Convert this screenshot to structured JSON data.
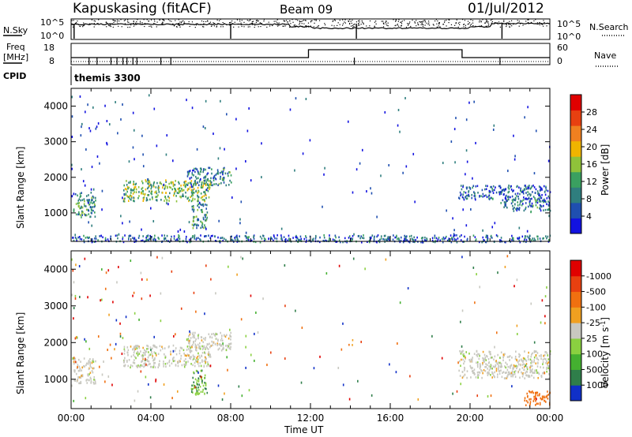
{
  "header": {
    "station": "Kapuskasing (fitACF)",
    "beam": "Beam 09",
    "date": "01/Jul/2012"
  },
  "panels": {
    "nsky": {
      "left_label": "N.Sky",
      "right_label": "N.Search",
      "left_ticks": [
        "10^5",
        "10^0"
      ],
      "right_ticks": [
        "10^5",
        "10^0"
      ]
    },
    "freq": {
      "left_label_line1": "Freq",
      "left_label_line2": "[MHz]",
      "right_label": "Nave",
      "left_ticks": [
        "18",
        "8"
      ],
      "right_ticks": [
        "60",
        "0"
      ]
    },
    "cpid": {
      "left_label": "CPID",
      "program": "themis 3300"
    }
  },
  "chart_data": [
    {
      "type": "heatmap",
      "title": "",
      "xlabel": "",
      "ylabel": "Slant Range [km]",
      "y_ticks": [
        "1000",
        "2000",
        "3000",
        "4000"
      ],
      "ylim": [
        200,
        4500
      ],
      "colorbar": {
        "label": "Power [dB]",
        "ticks": [
          "4",
          "8",
          "12",
          "16",
          "20",
          "24",
          "28"
        ],
        "colors": [
          "#1212e0",
          "#1f4fb0",
          "#2f7e7e",
          "#3aa060",
          "#8fc23a",
          "#f0b400",
          "#f08020",
          "#e84010",
          "#e00000"
        ]
      },
      "echo_regions": [
        {
          "t_start": 0.1,
          "t_end": 1.2,
          "r_min": 900,
          "r_max": 1600,
          "power_db": 12
        },
        {
          "t_start": 2.6,
          "t_end": 7.0,
          "r_min": 1350,
          "r_max": 1950,
          "power_db": 16
        },
        {
          "t_start": 5.8,
          "t_end": 8.0,
          "r_min": 1800,
          "r_max": 2300,
          "power_db": 10
        },
        {
          "t_start": 6.0,
          "t_end": 6.8,
          "r_min": 600,
          "r_max": 1300,
          "power_db": 12
        },
        {
          "t_start": 19.4,
          "t_end": 24.0,
          "r_min": 1400,
          "r_max": 1800,
          "power_db": 8
        },
        {
          "t_start": 21.5,
          "t_end": 24.0,
          "r_min": 1050,
          "r_max": 1400,
          "power_db": 10
        },
        {
          "t_start": 0.0,
          "t_end": 24.0,
          "r_min": 200,
          "r_max": 400,
          "power_db": 8
        }
      ]
    },
    {
      "type": "heatmap",
      "title": "",
      "xlabel": "Time UT",
      "ylabel": "Slant Range [km]",
      "y_ticks": [
        "1000",
        "2000",
        "3000",
        "4000"
      ],
      "x_ticks": [
        "00:00",
        "04:00",
        "08:00",
        "12:00",
        "16:00",
        "20:00",
        "00:00"
      ],
      "xlim": [
        0,
        24
      ],
      "ylim": [
        200,
        4500
      ],
      "colorbar": {
        "label": "Velocity [m s^-1]",
        "ticks": [
          "1000",
          "500",
          "100",
          "25",
          "-25",
          "-100",
          "-500",
          "-1000"
        ],
        "colors": [
          "#1030c8",
          "#2f7e4a",
          "#44b030",
          "#8ad040",
          "#c8c8c0",
          "#f0a020",
          "#f07010",
          "#e84010",
          "#e00000"
        ]
      },
      "echo_regions": [
        {
          "t_start": 0.1,
          "t_end": 1.2,
          "r_min": 900,
          "r_max": 1600,
          "velocity": 0
        },
        {
          "t_start": 2.6,
          "t_end": 7.0,
          "r_min": 1350,
          "r_max": 1950,
          "velocity": 0
        },
        {
          "t_start": 5.8,
          "t_end": 8.0,
          "r_min": 1800,
          "r_max": 2300,
          "velocity": 0
        },
        {
          "t_start": 6.0,
          "t_end": 6.8,
          "r_min": 600,
          "r_max": 1300,
          "velocity": 100
        },
        {
          "t_start": 13.9,
          "t_end": 14.1,
          "r_min": 1950,
          "r_max": 2100,
          "velocity": -100
        },
        {
          "t_start": 19.4,
          "t_end": 24.0,
          "r_min": 1050,
          "r_max": 1800,
          "velocity": 0
        },
        {
          "t_start": 22.7,
          "t_end": 24.0,
          "r_min": 300,
          "r_max": 700,
          "velocity": -200
        }
      ]
    }
  ]
}
